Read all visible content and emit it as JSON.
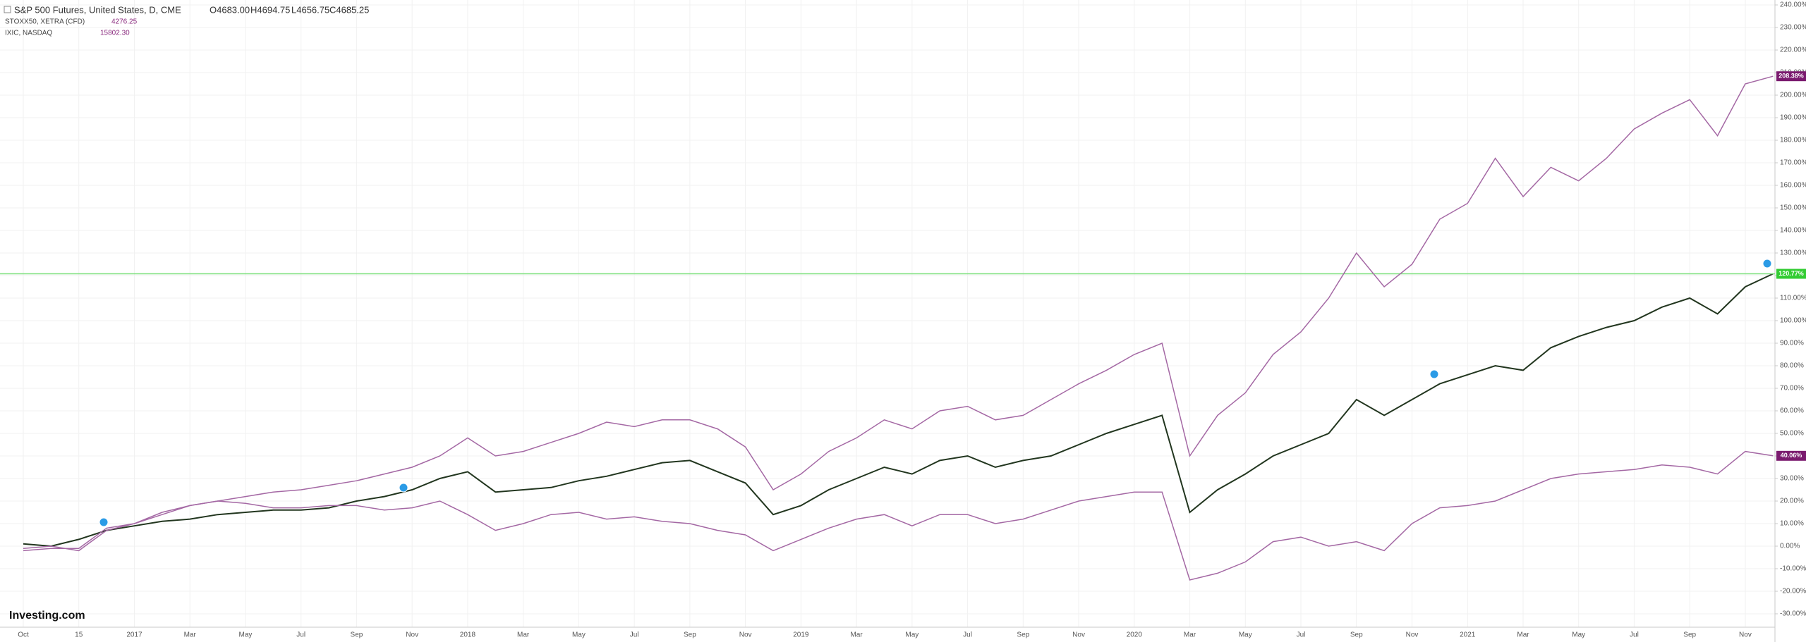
{
  "chart_data": {
    "type": "line",
    "header": {
      "ohlc": [
        "O4683.00",
        "H4694.75",
        "L4656.75",
        "C4685.25"
      ]
    },
    "logo": "Investing.com",
    "categories": [
      "Oct",
      null,
      "15",
      null,
      "2017",
      null,
      "Mar",
      null,
      "May",
      null,
      "Jul",
      null,
      "Sep",
      null,
      "Nov",
      null,
      "2018",
      null,
      "Mar",
      null,
      "May",
      null,
      "Jul",
      null,
      "Sep",
      null,
      "Nov",
      null,
      "2019",
      null,
      "Mar",
      null,
      "May",
      null,
      "Jul",
      null,
      "Sep",
      null,
      "Nov",
      null,
      "2020",
      null,
      "Mar",
      null,
      "May",
      null,
      "Jul",
      null,
      "Sep",
      null,
      "Nov",
      null,
      "2021",
      null,
      "Mar",
      null,
      "May",
      null,
      "Jul",
      null,
      "Sep",
      null,
      "Nov",
      null
    ],
    "series": [
      {
        "name": "S&P 500 Futures, United States, D, CME",
        "color": "#22361f",
        "label_color": "#33cc33",
        "values": [
          1,
          0,
          3,
          7,
          9,
          11,
          12,
          14,
          15,
          16,
          16,
          17,
          20,
          22,
          25,
          30,
          33,
          24,
          25,
          26,
          29,
          31,
          34,
          37,
          38,
          33,
          28,
          14,
          18,
          25,
          30,
          35,
          32,
          38,
          40,
          35,
          38,
          40,
          45,
          50,
          54,
          58,
          15,
          25,
          32,
          40,
          45,
          50,
          65,
          58,
          65,
          72,
          76,
          80,
          78,
          88,
          93,
          97,
          100,
          106,
          110,
          103,
          115,
          120.77
        ],
        "value_labels": [
          null,
          null,
          null,
          null,
          null,
          null,
          null,
          null,
          null,
          null,
          null,
          null,
          null,
          null,
          null,
          null,
          null,
          null,
          null,
          null,
          null,
          null,
          null,
          null,
          null,
          null,
          null,
          null,
          null,
          null,
          null,
          null,
          null,
          null,
          null,
          null,
          null,
          null,
          null,
          null,
          null,
          null,
          null,
          null,
          null,
          null,
          null,
          null,
          null,
          null,
          null,
          null,
          null,
          null,
          null,
          null,
          null,
          null,
          null,
          null,
          null,
          null,
          null,
          "120.77%"
        ]
      },
      {
        "name": "STOXX50, XETRA (CFD)",
        "quote": "4276.25",
        "color": "#a468a4",
        "label_color": "#7a1a6e",
        "values": [
          -2,
          -1,
          -1,
          8,
          10,
          14,
          18,
          20,
          19,
          17,
          17,
          18,
          18,
          16,
          17,
          20,
          14,
          7,
          10,
          14,
          15,
          12,
          13,
          11,
          10,
          7,
          5,
          -2,
          3,
          8,
          12,
          14,
          9,
          14,
          14,
          10,
          12,
          16,
          20,
          22,
          24,
          24,
          -15,
          -12,
          -7,
          2,
          4,
          0,
          2,
          -2,
          10,
          17,
          18,
          20,
          25,
          30,
          32,
          33,
          34,
          36,
          35,
          32,
          42,
          40.06
        ],
        "value_labels": [
          null,
          null,
          null,
          null,
          null,
          null,
          null,
          null,
          null,
          null,
          null,
          null,
          null,
          null,
          null,
          null,
          null,
          null,
          null,
          null,
          null,
          null,
          null,
          null,
          null,
          null,
          null,
          null,
          null,
          null,
          null,
          null,
          null,
          null,
          null,
          null,
          null,
          null,
          null,
          null,
          null,
          null,
          null,
          null,
          null,
          null,
          null,
          null,
          null,
          null,
          null,
          null,
          null,
          null,
          null,
          null,
          null,
          null,
          null,
          null,
          null,
          null,
          null,
          "40.06%"
        ]
      },
      {
        "name": "IXIC, NASDAQ",
        "quote": "15802.30",
        "color": "#a468a4",
        "label_color": "#7a1a6e",
        "values": [
          -1,
          0,
          -2,
          7,
          10,
          15,
          18,
          20,
          22,
          24,
          25,
          27,
          29,
          32,
          35,
          40,
          48,
          40,
          42,
          46,
          50,
          55,
          53,
          56,
          56,
          52,
          44,
          25,
          32,
          42,
          48,
          56,
          52,
          60,
          62,
          56,
          58,
          65,
          72,
          78,
          85,
          90,
          40,
          58,
          68,
          85,
          95,
          110,
          130,
          115,
          125,
          145,
          152,
          172,
          155,
          168,
          162,
          172,
          185,
          192,
          198,
          182,
          205,
          208.38
        ],
        "value_labels": [
          null,
          null,
          null,
          null,
          null,
          null,
          null,
          null,
          null,
          null,
          null,
          null,
          null,
          null,
          null,
          null,
          null,
          null,
          null,
          null,
          null,
          null,
          null,
          null,
          null,
          null,
          null,
          null,
          null,
          null,
          null,
          null,
          null,
          null,
          null,
          null,
          null,
          null,
          null,
          null,
          null,
          null,
          null,
          null,
          null,
          null,
          null,
          null,
          null,
          null,
          null,
          null,
          null,
          null,
          null,
          null,
          null,
          null,
          null,
          null,
          null,
          null,
          null,
          "208.38%"
        ]
      }
    ],
    "ylim": [
      -35.94,
      242.19
    ],
    "yticks": [
      {
        "value": 240,
        "label": "240.00%"
      },
      {
        "value": 230,
        "label": "230.00%"
      },
      {
        "value": 220,
        "label": "220.00%"
      },
      {
        "value": 210,
        "label": "210.00%"
      },
      {
        "value": 200,
        "label": "200.00%"
      },
      {
        "value": 190,
        "label": "190.00%"
      },
      {
        "value": 180,
        "label": "180.00%"
      },
      {
        "value": 170,
        "label": "170.00%"
      },
      {
        "value": 160,
        "label": "160.00%"
      },
      {
        "value": 150,
        "label": "150.00%"
      },
      {
        "value": 140,
        "label": "140.00%"
      },
      {
        "value": 130,
        "label": "130.00%"
      },
      {
        "value": 120,
        "label": "120.00%"
      },
      {
        "value": 110,
        "label": "110.00%"
      },
      {
        "value": 100,
        "label": "100.00%"
      },
      {
        "value": 90,
        "label": "90.00%"
      },
      {
        "value": 80,
        "label": "80.00%"
      },
      {
        "value": 70,
        "label": "70.00%"
      },
      {
        "value": 60,
        "label": "60.00%"
      },
      {
        "value": 50,
        "label": "50.00%"
      },
      {
        "value": 40,
        "label": "40.00%"
      },
      {
        "value": 30,
        "label": "30.00%"
      },
      {
        "value": 20,
        "label": "20.00%"
      },
      {
        "value": 10,
        "label": "10.00%"
      },
      {
        "value": 0,
        "label": "0.00%"
      },
      {
        "value": -10,
        "label": "-10.00%"
      },
      {
        "value": -20,
        "label": "-20.00%"
      },
      {
        "value": -30,
        "label": "-30.00%"
      }
    ],
    "grid": true,
    "price_line_color": "#7ee07e"
  }
}
